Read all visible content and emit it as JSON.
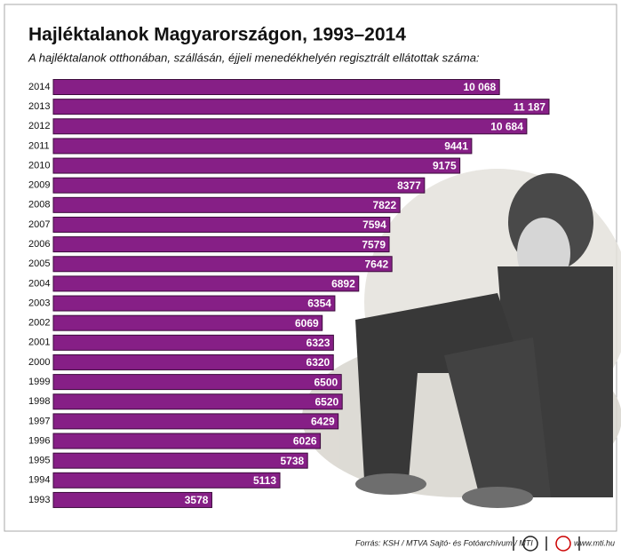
{
  "chart_data": {
    "type": "bar",
    "orientation": "horizontal",
    "title": "Hajléktalanok Magyarországon, 1993–2014",
    "subtitle": "A hajléktalanok otthonában, szállásán, éjjeli menedékhelyén regisztrált ellátottak száma:",
    "categories": [
      "2014",
      "2013",
      "2012",
      "2011",
      "2010",
      "2009",
      "2008",
      "2007",
      "2006",
      "2005",
      "2004",
      "2003",
      "2002",
      "2001",
      "2000",
      "1999",
      "1998",
      "1997",
      "1996",
      "1995",
      "1994",
      "1993"
    ],
    "values": [
      10068,
      11187,
      10684,
      9441,
      9175,
      8377,
      7822,
      7594,
      7579,
      7642,
      6892,
      6354,
      6069,
      6323,
      6320,
      6500,
      6520,
      6429,
      6026,
      5738,
      5113,
      3578
    ],
    "value_labels": [
      "10 068",
      "11 187",
      "10 684",
      "9441",
      "9175",
      "8377",
      "7822",
      "7594",
      "7579",
      "7642",
      "6892",
      "6354",
      "6069",
      "6323",
      "6320",
      "6500",
      "6520",
      "6429",
      "6026",
      "5738",
      "5113",
      "3578"
    ],
    "color": "#861f86"
  },
  "footer": {
    "source": "Forrás: KSH / MTVA Sajtó- és Fotóarchívum / MTI",
    "url": "www.mti.hu"
  }
}
